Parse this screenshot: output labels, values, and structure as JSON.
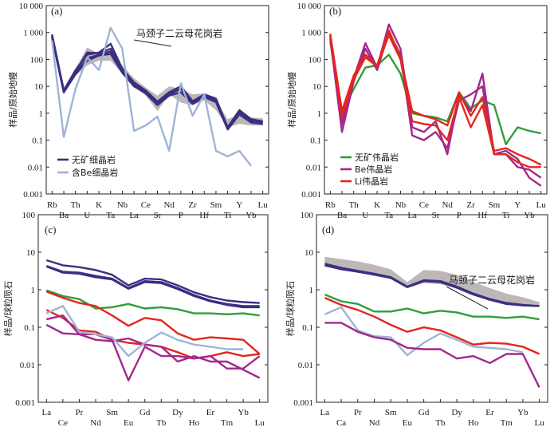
{
  "chart_data": [
    {
      "type": "line",
      "panel": "(a)",
      "ylabel": "样品/原始地幔",
      "yscale": "log",
      "ylim": [
        0.001,
        10000
      ],
      "yticks": [
        "0.001",
        "0.01",
        "0.1",
        "1",
        "10",
        "100",
        "1 000",
        "10 000"
      ],
      "categories": [
        "Rb",
        "Ba",
        "Th",
        "U",
        "K",
        "Ta",
        "Nb",
        "La",
        "Ce",
        "Sr",
        "Nd",
        "P",
        "Zr",
        "Hf",
        "Sm",
        "Ti",
        "Y",
        "Yb",
        "Lu"
      ],
      "annotation": "马颈子二云母花岗岩",
      "legend": [
        {
          "label": "无矿细晶岩",
          "color": "#3b2e82"
        },
        {
          "label": "含Be细晶岩",
          "color": "#9fb4d6"
        }
      ],
      "band": {
        "color": "#b3aaaa",
        "upper": [
          850,
          8,
          45,
          280,
          160,
          180,
          60,
          20,
          9,
          4.5,
          10,
          8,
          5,
          5.5,
          3,
          0.6,
          0.9,
          0.7,
          0.65
        ],
        "lower": [
          600,
          5,
          25,
          60,
          90,
          90,
          30,
          10,
          4.5,
          1.2,
          5,
          2.5,
          2,
          3,
          1.3,
          0.3,
          0.4,
          0.35,
          0.35
        ]
      },
      "series": [
        {
          "color": "#3b2e82",
          "values": [
            850,
            7,
            40,
            150,
            180,
            380,
            45,
            14,
            7,
            2.7,
            6,
            10,
            2.8,
            5,
            3.5,
            0.3,
            1.3,
            0.6,
            0.5
          ]
        },
        {
          "color": "#3b2e82",
          "values": [
            700,
            6,
            30,
            110,
            150,
            200,
            35,
            12,
            6,
            2.2,
            5,
            8,
            2.4,
            4.5,
            3,
            0.28,
            1,
            0.5,
            0.45
          ]
        },
        {
          "color": "#3b2e82",
          "values": [
            650,
            6,
            28,
            90,
            140,
            160,
            32,
            10,
            5.5,
            2,
            4.5,
            6,
            2.2,
            4,
            2.6,
            0.25,
            0.9,
            0.45,
            0.4
          ]
        },
        {
          "color": "#3b2e82",
          "values": [
            780,
            7,
            35,
            180,
            170,
            250,
            40,
            13,
            6.5,
            2.4,
            5.5,
            9,
            2.6,
            4.8,
            3.2,
            0.27,
            1.1,
            0.55,
            0.48
          ]
        },
        {
          "color": "#9fb4d6",
          "values": [
            500,
            0.13,
            8,
            120,
            40,
            1500,
            250,
            0.22,
            0.35,
            0.75,
            0.04,
            13,
            0.8,
            5,
            0.04,
            0.025,
            0.04,
            0.011,
            null
          ]
        }
      ]
    },
    {
      "type": "line",
      "panel": "(b)",
      "ylabel": "样品/原始地幔",
      "yscale": "log",
      "ylim": [
        0.001,
        10000
      ],
      "yticks": [
        "0.001",
        "0.01",
        "0.1",
        "1",
        "10",
        "100",
        "1 000",
        "10 000"
      ],
      "categories": [
        "Rb",
        "Ba",
        "Th",
        "U",
        "K",
        "Ta",
        "Nb",
        "La",
        "Ce",
        "Sr",
        "Nd",
        "P",
        "Zr",
        "Hf",
        "Sm",
        "Ti",
        "Y",
        "Yb",
        "Lu"
      ],
      "legend": [
        {
          "label": "无矿伟晶岩",
          "color": "#2e9e3a"
        },
        {
          "label": "Be伟晶岩",
          "color": "#a3288c"
        },
        {
          "label": "Li伟晶岩",
          "color": "#e4261e"
        }
      ],
      "series": [
        {
          "color": "#2e9e3a",
          "values": [
            450,
            1,
            8,
            50,
            60,
            150,
            30,
            1,
            0.8,
            0.7,
            0.5,
            6,
            1.5,
            3,
            2,
            0.07,
            0.3,
            0.22,
            0.18
          ]
        },
        {
          "color": "#a3288c",
          "values": [
            800,
            0.4,
            20,
            400,
            50,
            2000,
            250,
            0.3,
            0.2,
            0.5,
            0.03,
            5,
            1.2,
            30,
            0.03,
            0.04,
            0.02,
            0.004,
            0.002
          ]
        },
        {
          "color": "#a3288c",
          "values": [
            600,
            0.2,
            15,
            250,
            40,
            1000,
            150,
            0.15,
            0.1,
            0.2,
            0.05,
            3,
            5,
            10,
            0.03,
            0.03,
            0.01,
            0.008,
            0.004
          ]
        },
        {
          "color": "#e4261e",
          "values": [
            900,
            1.2,
            25,
            150,
            60,
            1200,
            120,
            1.2,
            0.8,
            0.6,
            0.35,
            6,
            0.8,
            4,
            0.04,
            0.05,
            0.03,
            0.02,
            0.012
          ]
        },
        {
          "color": "#e4261e",
          "values": [
            700,
            0.7,
            18,
            120,
            55,
            800,
            100,
            0.5,
            0.4,
            0.35,
            0.1,
            4,
            0.3,
            2,
            0.03,
            0.03,
            0.015,
            0.01,
            0.01
          ]
        }
      ]
    },
    {
      "type": "line",
      "panel": "(c)",
      "ylabel": "样品/球粒陨石",
      "yscale": "log",
      "ylim": [
        0.001,
        1000
      ],
      "yticks": [
        "0.001",
        "0.01",
        "0.1",
        "1",
        "10",
        "100"
      ],
      "categories": [
        "La",
        "Ce",
        "Pr",
        "Nd",
        "Sm",
        "Eu",
        "Gd",
        "Tb",
        "Dy",
        "Ho",
        "Er",
        "Tm",
        "Yb",
        "Lu"
      ],
      "series": [
        {
          "color": "#3b2e82",
          "values": [
            35,
            24,
            21,
            17,
            12,
            5.5,
            9,
            8.5,
            5.5,
            3.3,
            2.3,
            1.8,
            1.6,
            1.5
          ]
        },
        {
          "color": "#3b2e82",
          "values": [
            23,
            15,
            14,
            11,
            9,
            4.5,
            7.5,
            7,
            4.5,
            2.7,
            1.8,
            1.4,
            1.2,
            1.2
          ]
        },
        {
          "color": "#3b2e82",
          "values": [
            22,
            14,
            13,
            10,
            8.5,
            4.3,
            7,
            6.5,
            4.2,
            2.5,
            1.7,
            1.3,
            1.1,
            1.1
          ]
        },
        {
          "color": "#2e9e3a",
          "values": [
            3.8,
            2.5,
            2,
            1,
            1.1,
            1.4,
            1,
            1.1,
            0.95,
            0.7,
            0.7,
            0.65,
            0.7,
            0.6
          ]
        },
        {
          "color": "#e4261e",
          "values": [
            3.5,
            2.2,
            1.5,
            1.2,
            0.6,
            0.28,
            0.5,
            0.42,
            0.16,
            0.1,
            0.12,
            0.11,
            0.1,
            0.035
          ]
        },
        {
          "color": "#e4261e",
          "values": [
            0.9,
            0.5,
            0.2,
            0.18,
            0.1,
            0.08,
            0.07,
            0.06,
            0.04,
            0.025,
            0.03,
            0.04,
            0.03,
            0.035
          ]
        },
        {
          "color": "#a3288c",
          "values": [
            0.45,
            0.6,
            0.15,
            0.15,
            0.1,
            0.005,
            0.06,
            0.03,
            0.03,
            0.025,
            0.03,
            0.012,
            0.012,
            0.03
          ]
        },
        {
          "color": "#a3288c",
          "values": [
            0.3,
            0.16,
            0.15,
            0.1,
            0.09,
            0.11,
            0.07,
            0.06,
            0.02,
            0.03,
            0.02,
            0.02,
            0.011,
            0.006
          ]
        },
        {
          "color": "#9fb4d6",
          "values": [
            0.7,
            1.2,
            0.18,
            0.15,
            0.12,
            0.03,
            0.08,
            0.17,
            0.1,
            0.07,
            0.06,
            0.05,
            0.05,
            null
          ]
        }
      ]
    },
    {
      "type": "line",
      "panel": "(d)",
      "ylabel": "样品/球粒陨石",
      "yscale": "log",
      "ylim": [
        0.001,
        1000
      ],
      "yticks": [
        "0.001",
        "0.01",
        "0.1",
        "1",
        "10",
        "100"
      ],
      "categories": [
        "La",
        "Ca",
        "Pr",
        "Nd",
        "Sm",
        "Eu",
        "Gd",
        "Tb",
        "Dy",
        "Ho",
        "Er",
        "Tm",
        "Yb",
        "Lu"
      ],
      "annotation": "马颈子二云母花岗岩",
      "band": {
        "color": "#b3aaaa",
        "upper": [
          45,
          38,
          32,
          25,
          18,
          7,
          17,
          16,
          12,
          7,
          4.5,
          3,
          2.3,
          1.6
        ],
        "lower": [
          23,
          17,
          14,
          12,
          9,
          4.5,
          6.5,
          6,
          4.5,
          2.8,
          2,
          1.5,
          1.3,
          1.2
        ]
      },
      "series": [
        {
          "color": "#3b2e82",
          "values": [
            27,
            20,
            16,
            13,
            10,
            5,
            8,
            7.5,
            5,
            3,
            2,
            1.5,
            1.3,
            1.2
          ]
        },
        {
          "color": "#3b2e82",
          "values": [
            24,
            18,
            15,
            12,
            9.5,
            4.8,
            7.5,
            7,
            4.6,
            2.8,
            1.9,
            1.4,
            1.25,
            1.2
          ]
        },
        {
          "color": "#2e9e3a",
          "values": [
            2.8,
            1.7,
            1.4,
            0.8,
            0.8,
            1,
            0.7,
            0.85,
            0.75,
            0.55,
            0.55,
            0.5,
            0.55,
            0.45
          ]
        },
        {
          "color": "#e4261e",
          "values": [
            2.2,
            1.3,
            0.9,
            0.55,
            0.3,
            0.18,
            0.25,
            0.2,
            0.12,
            0.07,
            0.08,
            0.075,
            0.06,
            0.035
          ]
        },
        {
          "color": "#9fb4d6",
          "values": [
            0.65,
            1.1,
            0.2,
            0.13,
            0.12,
            0.032,
            0.08,
            0.16,
            0.1,
            0.06,
            0.055,
            0.05,
            0.04,
            null
          ]
        },
        {
          "color": "#a3288c",
          "values": [
            0.35,
            0.35,
            0.18,
            0.12,
            0.1,
            0.055,
            0.05,
            0.05,
            0.025,
            0.03,
            0.018,
            0.035,
            0.035,
            0.003
          ]
        }
      ]
    }
  ]
}
